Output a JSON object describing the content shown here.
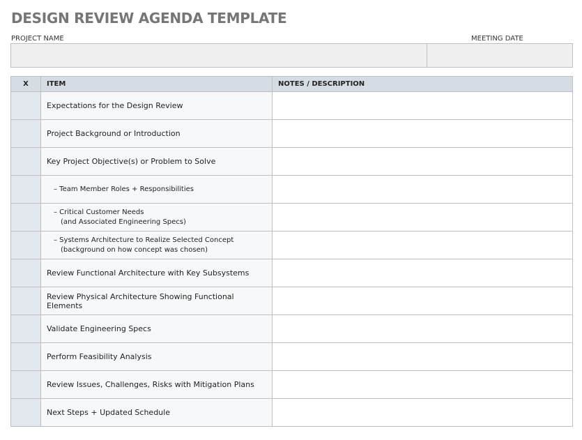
{
  "title": "DESIGN REVIEW AGENDA TEMPLATE",
  "project_name_label": "PROJECT NAME",
  "project_name_value": "",
  "meeting_date_label": "MEETING DATE",
  "meeting_date_value": "",
  "table": {
    "headers": [
      "X",
      "ITEM",
      "NOTES / DESCRIPTION"
    ],
    "rows": [
      {
        "item": "Expectations for the Design Review",
        "sub": false
      },
      {
        "item": "Project Background or Introduction",
        "sub": false
      },
      {
        "item": "Key Project Objective(s) or Problem to Solve",
        "sub": false
      },
      {
        "item": "–  Team Member Roles + Responsibilities",
        "sub": true
      },
      {
        "item": "–  Critical Customer Needs",
        "item2": "(and Associated Engineering Specs)",
        "sub": true
      },
      {
        "item": "–  Systems Architecture to Realize Selected Concept",
        "item2": "(background on how concept was chosen)",
        "sub": true
      },
      {
        "item": "Review Functional Architecture with Key Subsystems",
        "sub": false
      },
      {
        "item": "Review Physical Architecture Showing Functional Elements",
        "sub": false
      },
      {
        "item": "Validate Engineering Specs",
        "sub": false
      },
      {
        "item": "Perform Feasibility Analysis",
        "sub": false
      },
      {
        "item": "Review Issues, Challenges, Risks with Mitigation Plans",
        "sub": false
      },
      {
        "item": "Next Steps + Updated Schedule",
        "sub": false
      }
    ]
  },
  "colors": {
    "header": "#d6dce4",
    "x_column": "#e3e7ee",
    "title": "#767676"
  }
}
